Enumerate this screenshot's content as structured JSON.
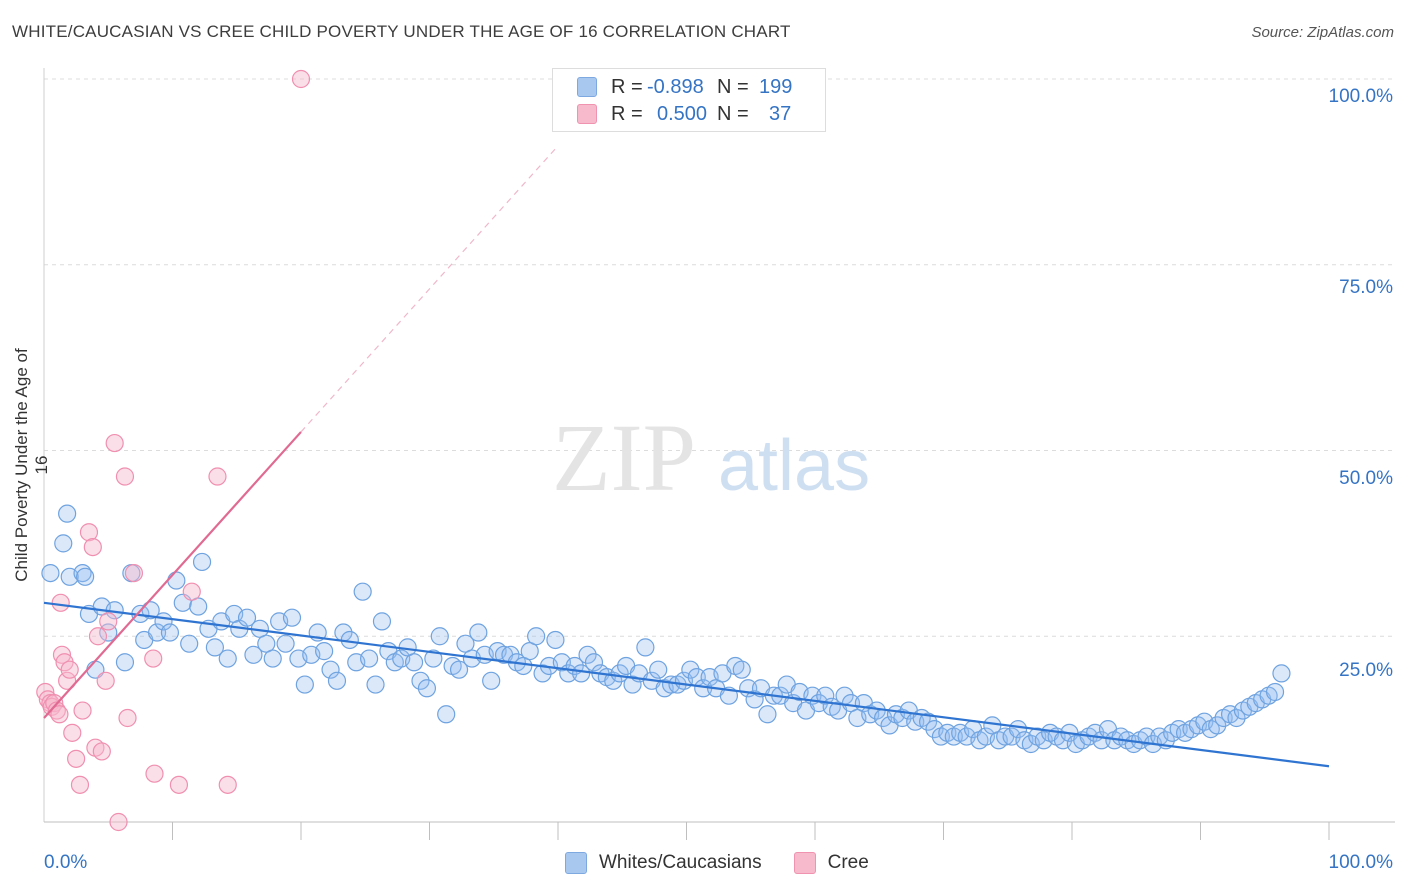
{
  "header": {
    "title": "WHITE/CAUCASIAN VS CREE CHILD POVERTY UNDER THE AGE OF 16 CORRELATION CHART",
    "source": "Source: ZipAtlas.com"
  },
  "watermark": {
    "zip": "ZIP",
    "atlas": "atlas"
  },
  "legend": {
    "rows": [
      {
        "r_label": "R =",
        "r_value": "-0.898",
        "n_label": "N =",
        "n_value": "199",
        "color": "#a9c8f0"
      },
      {
        "r_label": "R =",
        "r_value": "0.500",
        "n_label": "N =",
        "n_value": "37",
        "color": "#f7b9cc"
      }
    ]
  },
  "bottom_legend": [
    {
      "label": "Whites/Caucasians",
      "color": "#a9c8f0"
    },
    {
      "label": "Cree",
      "color": "#f7b9cc"
    }
  ],
  "axes": {
    "ylabel": "Child Poverty Under the Age of 16",
    "y_ticks": [
      "100.0%",
      "75.0%",
      "50.0%",
      "25.0%"
    ],
    "x_ticks": [
      "0.0%",
      "100.0%"
    ]
  },
  "chart_data": {
    "type": "scatter",
    "title": "WHITE/CAUCASIAN VS CREE CHILD POVERTY UNDER THE AGE OF 16 CORRELATION CHART",
    "xlabel": "",
    "ylabel": "Child Poverty Under the Age of 16",
    "xlim": [
      0,
      100
    ],
    "ylim": [
      0,
      100
    ],
    "grid": true,
    "colors": {
      "white": "#6fa3e0",
      "white_fill": "rgba(150,190,240,0.35)",
      "cree": "#f08fb0",
      "cree_fill": "rgba(247,185,204,0.45)",
      "white_line": "#2f74d0",
      "cree_line": "#e06a92"
    },
    "series": [
      {
        "name": "Whites/Caucasians",
        "points": [
          [
            0.5,
            33.5
          ],
          [
            1.5,
            37.5
          ],
          [
            1.8,
            41.5
          ],
          [
            2.0,
            33
          ],
          [
            3.0,
            33.5
          ],
          [
            3.2,
            33
          ],
          [
            3.5,
            28
          ],
          [
            4.0,
            20.5
          ],
          [
            4.5,
            29
          ],
          [
            5.0,
            25.5
          ],
          [
            5.5,
            28.5
          ],
          [
            6.3,
            21.5
          ],
          [
            6.8,
            33.5
          ],
          [
            7.5,
            28
          ],
          [
            7.8,
            24.5
          ],
          [
            8.3,
            28.5
          ],
          [
            8.8,
            25.5
          ],
          [
            9.3,
            27
          ],
          [
            9.8,
            25.5
          ],
          [
            10.3,
            32.5
          ],
          [
            10.8,
            29.5
          ],
          [
            11.3,
            24
          ],
          [
            12.0,
            29
          ],
          [
            12.3,
            35
          ],
          [
            12.8,
            26
          ],
          [
            13.3,
            23.5
          ],
          [
            13.8,
            27
          ],
          [
            14.3,
            22
          ],
          [
            14.8,
            28
          ],
          [
            15.2,
            26
          ],
          [
            15.8,
            27.5
          ],
          [
            16.3,
            22.5
          ],
          [
            16.8,
            26
          ],
          [
            17.3,
            24
          ],
          [
            17.8,
            22
          ],
          [
            18.3,
            27
          ],
          [
            18.8,
            24
          ],
          [
            19.3,
            27.5
          ],
          [
            19.8,
            22
          ],
          [
            20.3,
            18.5
          ],
          [
            20.8,
            22.5
          ],
          [
            21.3,
            25.5
          ],
          [
            21.8,
            23
          ],
          [
            22.3,
            20.5
          ],
          [
            22.8,
            19
          ],
          [
            23.3,
            25.5
          ],
          [
            23.8,
            24.5
          ],
          [
            24.3,
            21.5
          ],
          [
            24.8,
            31
          ],
          [
            25.3,
            22
          ],
          [
            25.8,
            18.5
          ],
          [
            26.3,
            27
          ],
          [
            26.8,
            23
          ],
          [
            27.3,
            21.5
          ],
          [
            27.8,
            22
          ],
          [
            28.3,
            23.5
          ],
          [
            28.8,
            21.5
          ],
          [
            29.3,
            19
          ],
          [
            29.8,
            18
          ],
          [
            30.3,
            22
          ],
          [
            30.8,
            25
          ],
          [
            31.3,
            14.5
          ],
          [
            31.8,
            21
          ],
          [
            32.3,
            20.5
          ],
          [
            32.8,
            24
          ],
          [
            33.3,
            22
          ],
          [
            33.8,
            25.5
          ],
          [
            34.3,
            22.5
          ],
          [
            34.8,
            19
          ],
          [
            35.3,
            23
          ],
          [
            35.8,
            22.5
          ],
          [
            36.3,
            22.5
          ],
          [
            36.8,
            21.5
          ],
          [
            37.3,
            21
          ],
          [
            37.8,
            23
          ],
          [
            38.3,
            25
          ],
          [
            38.8,
            20
          ],
          [
            39.3,
            21
          ],
          [
            39.8,
            24.5
          ],
          [
            40.3,
            21.5
          ],
          [
            40.8,
            20
          ],
          [
            41.3,
            21
          ],
          [
            41.8,
            20
          ],
          [
            42.3,
            22.5
          ],
          [
            42.8,
            21.5
          ],
          [
            43.3,
            20
          ],
          [
            43.8,
            19.5
          ],
          [
            44.3,
            19
          ],
          [
            44.8,
            20
          ],
          [
            45.3,
            21
          ],
          [
            45.8,
            18.5
          ],
          [
            46.3,
            20
          ],
          [
            46.8,
            23.5
          ],
          [
            47.3,
            19
          ],
          [
            47.8,
            20.5
          ],
          [
            48.3,
            18
          ],
          [
            48.8,
            18.5
          ],
          [
            49.3,
            18.5
          ],
          [
            49.8,
            19
          ],
          [
            50.3,
            20.5
          ],
          [
            50.8,
            19.5
          ],
          [
            51.3,
            18
          ],
          [
            51.8,
            19.5
          ],
          [
            52.3,
            18
          ],
          [
            52.8,
            20
          ],
          [
            53.3,
            17
          ],
          [
            53.8,
            21
          ],
          [
            54.3,
            20.5
          ],
          [
            54.8,
            18
          ],
          [
            55.3,
            16.5
          ],
          [
            55.8,
            18
          ],
          [
            56.3,
            14.5
          ],
          [
            56.8,
            17
          ],
          [
            57.3,
            17
          ],
          [
            57.8,
            18.5
          ],
          [
            58.3,
            16
          ],
          [
            58.8,
            17.5
          ],
          [
            59.3,
            15
          ],
          [
            59.8,
            17
          ],
          [
            60.3,
            16
          ],
          [
            60.8,
            17
          ],
          [
            61.3,
            15.5
          ],
          [
            61.8,
            15
          ],
          [
            62.3,
            17
          ],
          [
            62.8,
            16
          ],
          [
            63.3,
            14
          ],
          [
            63.8,
            16
          ],
          [
            64.3,
            14.5
          ],
          [
            64.8,
            15
          ],
          [
            65.3,
            14
          ],
          [
            65.8,
            13
          ],
          [
            66.3,
            14.5
          ],
          [
            66.8,
            14
          ],
          [
            67.3,
            15
          ],
          [
            67.8,
            13.5
          ],
          [
            68.3,
            14
          ],
          [
            68.8,
            13.5
          ],
          [
            69.3,
            12.5
          ],
          [
            69.8,
            11.5
          ],
          [
            70.3,
            12
          ],
          [
            70.8,
            11.5
          ],
          [
            71.3,
            12
          ],
          [
            71.8,
            11.5
          ],
          [
            72.3,
            12.5
          ],
          [
            72.8,
            11
          ],
          [
            73.3,
            11.5
          ],
          [
            73.8,
            13
          ],
          [
            74.3,
            11
          ],
          [
            74.8,
            11.5
          ],
          [
            75.3,
            11.5
          ],
          [
            75.8,
            12.5
          ],
          [
            76.3,
            11
          ],
          [
            76.8,
            10.5
          ],
          [
            77.3,
            11.5
          ],
          [
            77.8,
            11
          ],
          [
            78.3,
            12
          ],
          [
            78.8,
            11.5
          ],
          [
            79.3,
            11
          ],
          [
            79.8,
            12
          ],
          [
            80.3,
            10.5
          ],
          [
            80.8,
            11
          ],
          [
            81.3,
            11.5
          ],
          [
            81.8,
            12
          ],
          [
            82.3,
            11
          ],
          [
            82.8,
            12.5
          ],
          [
            83.3,
            11
          ],
          [
            83.8,
            11.5
          ],
          [
            84.3,
            11
          ],
          [
            84.8,
            10.5
          ],
          [
            85.3,
            11
          ],
          [
            85.8,
            11.5
          ],
          [
            86.3,
            10.5
          ],
          [
            86.8,
            11.5
          ],
          [
            87.3,
            11
          ],
          [
            87.8,
            12
          ],
          [
            88.3,
            12.5
          ],
          [
            88.8,
            12
          ],
          [
            89.3,
            12.5
          ],
          [
            89.8,
            13
          ],
          [
            90.3,
            13.5
          ],
          [
            90.8,
            12.5
          ],
          [
            91.3,
            13
          ],
          [
            91.8,
            14
          ],
          [
            92.3,
            14.5
          ],
          [
            92.8,
            14
          ],
          [
            93.3,
            15
          ],
          [
            93.8,
            15.5
          ],
          [
            94.3,
            16
          ],
          [
            94.8,
            16.5
          ],
          [
            95.3,
            17
          ],
          [
            95.8,
            17.5
          ],
          [
            96.3,
            20
          ]
        ],
        "trend": {
          "x": [
            0,
            100
          ],
          "y": [
            29.5,
            7.5
          ]
        }
      },
      {
        "name": "Cree",
        "points": [
          [
            0.1,
            17.5
          ],
          [
            0.3,
            16.5
          ],
          [
            0.5,
            16
          ],
          [
            0.6,
            15.5
          ],
          [
            0.8,
            16
          ],
          [
            1.0,
            15
          ],
          [
            1.2,
            14.5
          ],
          [
            1.3,
            29.5
          ],
          [
            1.4,
            22.5
          ],
          [
            1.6,
            21.5
          ],
          [
            1.8,
            19
          ],
          [
            2.0,
            20.5
          ],
          [
            2.2,
            12
          ],
          [
            2.5,
            8.5
          ],
          [
            2.8,
            5
          ],
          [
            3.0,
            15
          ],
          [
            3.5,
            39
          ],
          [
            3.8,
            37
          ],
          [
            4.0,
            10
          ],
          [
            4.2,
            25
          ],
          [
            4.5,
            9.5
          ],
          [
            4.8,
            19
          ],
          [
            5.0,
            27
          ],
          [
            5.5,
            51
          ],
          [
            5.8,
            0
          ],
          [
            6.3,
            46.5
          ],
          [
            6.5,
            14
          ],
          [
            7.0,
            33.5
          ],
          [
            8.5,
            22
          ],
          [
            8.6,
            6.5
          ],
          [
            10.5,
            5
          ],
          [
            11.5,
            31
          ],
          [
            13.5,
            46.5
          ],
          [
            14.3,
            5
          ],
          [
            20.0,
            100
          ]
        ],
        "trend_solid": {
          "x": [
            0,
            20
          ],
          "y": [
            14,
            52.5
          ]
        },
        "trend_dashed": {
          "x": [
            20,
            40
          ],
          "y": [
            52.5,
            91
          ]
        }
      }
    ]
  }
}
